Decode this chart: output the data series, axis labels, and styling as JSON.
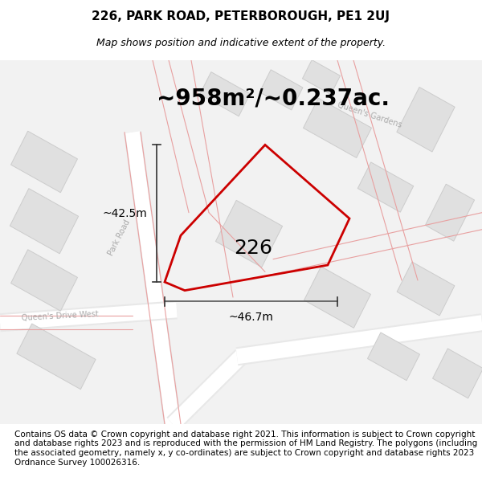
{
  "title": "226, PARK ROAD, PETERBOROUGH, PE1 2UJ",
  "subtitle": "Map shows position and indicative extent of the property.",
  "area_label": "~958m²/~0.237ac.",
  "plot_number": "226",
  "dim_width": "~46.7m",
  "dim_height": "~42.5m",
  "background_color": "#f5f5f5",
  "map_bg": "#f0f0f0",
  "road_color_light": "#f5c0c0",
  "building_fill": "#e0e0e0",
  "building_stroke": "#cccccc",
  "road_center_color": "#cccccc",
  "plot_poly_color": "#cc0000",
  "plot_fill": "none",
  "dimension_color": "#555555",
  "footer_text": "Contains OS data © Crown copyright and database right 2021. This information is subject to Crown copyright and database rights 2023 and is reproduced with the permission of HM Land Registry. The polygons (including the associated geometry, namely x, y co-ordinates) are subject to Crown copyright and database rights 2023 Ordnance Survey 100026316.",
  "title_fontsize": 11,
  "subtitle_fontsize": 9,
  "area_fontsize": 20,
  "plot_label_fontsize": 18,
  "footer_fontsize": 7.5,
  "dim_fontsize": 10,
  "street_label_fontsize": 7
}
